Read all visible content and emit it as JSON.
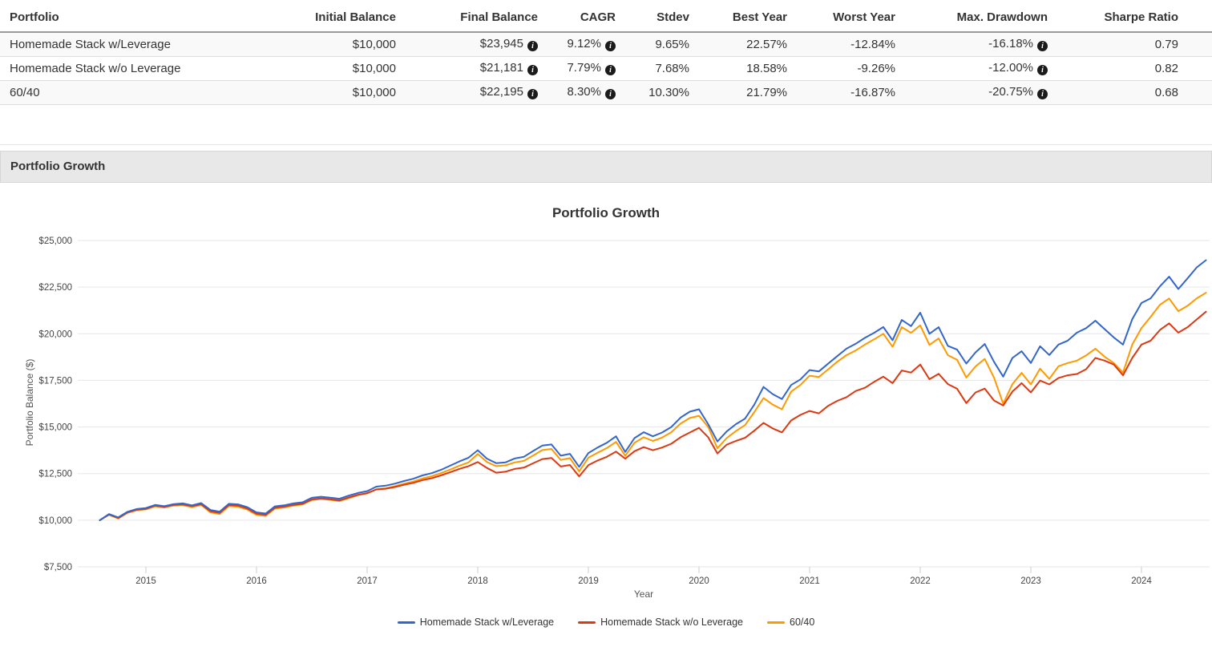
{
  "table": {
    "columns": [
      "Portfolio",
      "Initial Balance",
      "Final Balance",
      "CAGR",
      "Stdev",
      "Best Year",
      "Worst Year",
      "Max. Drawdown",
      "Sharpe Ratio"
    ],
    "info_icon_glyph": "i",
    "rows": [
      {
        "cells": [
          "Homemade Stack w/Leverage",
          "$10,000",
          "$23,945",
          "9.12%",
          "9.65%",
          "22.57%",
          "-12.84%",
          "-16.18%",
          "0.79"
        ]
      },
      {
        "cells": [
          "Homemade Stack w/o Leverage",
          "$10,000",
          "$21,181",
          "7.79%",
          "7.68%",
          "18.58%",
          "-9.26%",
          "-12.00%",
          "0.82"
        ]
      },
      {
        "cells": [
          "60/40",
          "$10,000",
          "$22,195",
          "8.30%",
          "10.30%",
          "21.79%",
          "-16.87%",
          "-20.75%",
          "0.68"
        ]
      }
    ]
  },
  "section": {
    "title": "Portfolio Growth"
  },
  "chart_data": {
    "type": "line",
    "title": "Portfolio Growth",
    "xlabel": "Year",
    "ylabel": "Portfolio Balance ($)",
    "grid": "horizontal-only",
    "legend_position": "bottom",
    "ylim": [
      7500,
      25000
    ],
    "x_start": "2014-08",
    "x_end": "2024-08",
    "x_points_per_year": 12,
    "y_ticks": [
      {
        "value": 7500,
        "label": "$7,500"
      },
      {
        "value": 10000,
        "label": "$10,000"
      },
      {
        "value": 12500,
        "label": "$12,500"
      },
      {
        "value": 15000,
        "label": "$15,000"
      },
      {
        "value": 17500,
        "label": "$17,500"
      },
      {
        "value": 20000,
        "label": "$20,000"
      },
      {
        "value": 22500,
        "label": "$22,500"
      },
      {
        "value": 25000,
        "label": "$25,000"
      }
    ],
    "x_ticks": [
      {
        "value": 2015,
        "label": "2015"
      },
      {
        "value": 2016,
        "label": "2016"
      },
      {
        "value": 2017,
        "label": "2017"
      },
      {
        "value": 2018,
        "label": "2018"
      },
      {
        "value": 2019,
        "label": "2019"
      },
      {
        "value": 2020,
        "label": "2020"
      },
      {
        "value": 2021,
        "label": "2021"
      },
      {
        "value": 2022,
        "label": "2022"
      },
      {
        "value": 2023,
        "label": "2023"
      },
      {
        "value": 2024,
        "label": "2024"
      }
    ],
    "series": [
      {
        "name": "Homemade Stack w/Leverage",
        "color": "#3366cc",
        "values": [
          10000,
          10330,
          10150,
          10450,
          10600,
          10650,
          10820,
          10750,
          10860,
          10900,
          10800,
          10920,
          10550,
          10460,
          10880,
          10850,
          10700,
          10420,
          10360,
          10740,
          10800,
          10900,
          10960,
          11200,
          11260,
          11210,
          11150,
          11320,
          11460,
          11560,
          11800,
          11850,
          11960,
          12100,
          12220,
          12400,
          12520,
          12700,
          12920,
          13150,
          13350,
          13750,
          13300,
          13060,
          13100,
          13310,
          13400,
          13710,
          14000,
          14060,
          13460,
          13560,
          12860,
          13600,
          13900,
          14150,
          14500,
          13660,
          14400,
          14720,
          14500,
          14700,
          15000,
          15500,
          15820,
          15950,
          15150,
          14220,
          14760,
          15150,
          15450,
          16200,
          17150,
          16760,
          16500,
          17250,
          17550,
          18050,
          17980,
          18390,
          18800,
          19200,
          19460,
          19780,
          20050,
          20360,
          19650,
          20740,
          20410,
          21130,
          20000,
          20350,
          19350,
          19150,
          18400,
          19000,
          19450,
          18500,
          17700,
          18700,
          19060,
          18430,
          19330,
          18860,
          19420,
          19630,
          20060,
          20300,
          20700,
          20250,
          19800,
          19420,
          20780,
          21650,
          21900,
          22540,
          23060,
          22400,
          22970,
          23560,
          23945
        ]
      },
      {
        "name": "Homemade Stack w/o Leverage",
        "color": "#dc3912",
        "values": [
          10000,
          10310,
          10120,
          10420,
          10560,
          10610,
          10780,
          10710,
          10820,
          10850,
          10750,
          10860,
          10480,
          10390,
          10810,
          10780,
          10630,
          10350,
          10290,
          10670,
          10730,
          10820,
          10880,
          11110,
          11170,
          11120,
          11060,
          11220,
          11360,
          11450,
          11650,
          11690,
          11780,
          11900,
          12000,
          12150,
          12250,
          12400,
          12570,
          12750,
          12900,
          13120,
          12800,
          12550,
          12600,
          12750,
          12820,
          13050,
          13280,
          13340,
          12880,
          12960,
          12350,
          12950,
          13200,
          13400,
          13680,
          13300,
          13700,
          13920,
          13750,
          13900,
          14100,
          14450,
          14700,
          14950,
          14450,
          13580,
          14050,
          14250,
          14420,
          14800,
          15220,
          14920,
          14710,
          15350,
          15650,
          15860,
          15730,
          16130,
          16400,
          16600,
          16930,
          17100,
          17420,
          17700,
          17350,
          18030,
          17920,
          18350,
          17560,
          17850,
          17300,
          17050,
          16280,
          16850,
          17060,
          16420,
          16150,
          16900,
          17350,
          16850,
          17490,
          17280,
          17630,
          17770,
          17840,
          18100,
          18700,
          18560,
          18350,
          17770,
          18700,
          19420,
          19630,
          20200,
          20560,
          20060,
          20350,
          20770,
          21181
        ]
      },
      {
        "name": "60/40",
        "color": "#ff9900",
        "values": [
          10000,
          10280,
          10090,
          10390,
          10530,
          10580,
          10740,
          10680,
          10780,
          10810,
          10700,
          10820,
          10420,
          10330,
          10760,
          10720,
          10570,
          10280,
          10230,
          10620,
          10680,
          10780,
          10850,
          11080,
          11140,
          11090,
          11030,
          11180,
          11340,
          11440,
          11660,
          11710,
          11820,
          11960,
          12070,
          12240,
          12360,
          12520,
          12710,
          12920,
          13100,
          13550,
          13120,
          12900,
          12940,
          13100,
          13180,
          13470,
          13760,
          13820,
          13230,
          13330,
          12620,
          13350,
          13620,
          13870,
          14200,
          13460,
          14150,
          14450,
          14250,
          14430,
          14720,
          15180,
          15480,
          15600,
          15000,
          13860,
          14400,
          14780,
          15100,
          15800,
          16550,
          16200,
          15950,
          16900,
          17250,
          17750,
          17680,
          18080,
          18500,
          18850,
          19100,
          19420,
          19700,
          20000,
          19300,
          20350,
          20050,
          20450,
          19400,
          19750,
          18850,
          18600,
          17650,
          18250,
          18650,
          17650,
          16250,
          17300,
          17900,
          17280,
          18130,
          17580,
          18260,
          18430,
          18560,
          18840,
          19200,
          18770,
          18430,
          17920,
          19420,
          20300,
          20910,
          21550,
          21890,
          21210,
          21500,
          21900,
          22195
        ]
      }
    ]
  }
}
